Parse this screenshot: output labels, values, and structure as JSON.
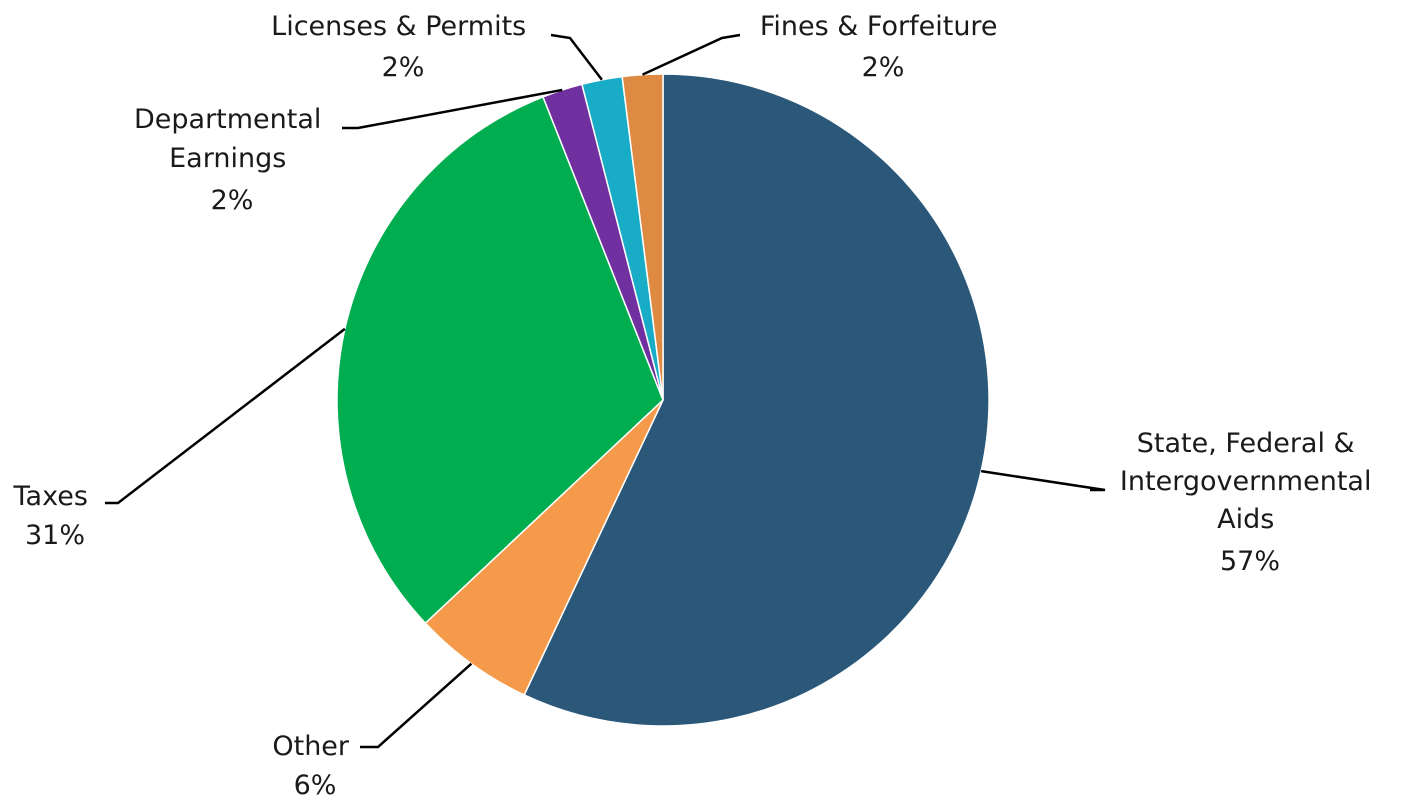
{
  "chart_data": {
    "type": "pie",
    "title": "",
    "slices": [
      {
        "label": "State, Federal & Intergovernmental Aids",
        "value": 57,
        "percent_label": "57%",
        "color": "#2B5779"
      },
      {
        "label": "Other",
        "value": 6,
        "percent_label": "6%",
        "color": "#F59A4A"
      },
      {
        "label": "Taxes",
        "value": 31,
        "percent_label": "31%",
        "color": "#00AE4F"
      },
      {
        "label": "Departmental Earnings",
        "value": 2,
        "percent_label": "2%",
        "color": "#7030A0"
      },
      {
        "label": "Licenses & Permits",
        "value": 2,
        "percent_label": "2%",
        "color": "#18ACC6"
      },
      {
        "label": "Fines & Forfeiture",
        "value": 2,
        "percent_label": "2%",
        "color": "#DE8A42"
      }
    ],
    "legend": "none",
    "data_labels": "outside-with-leader-lines"
  }
}
